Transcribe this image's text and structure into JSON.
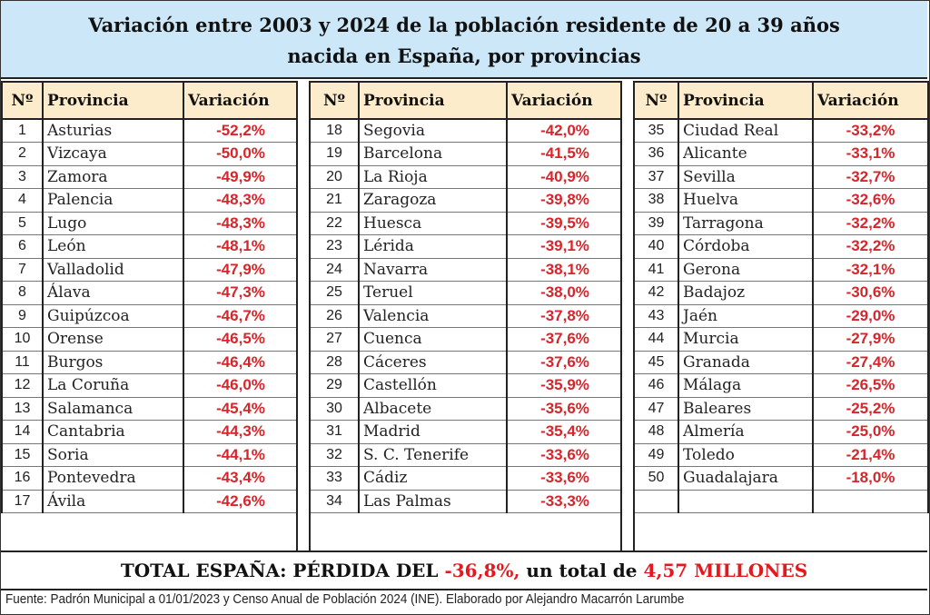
{
  "title": {
    "line1": "Variación entre 2003 y 2024 de la población residente de 20 a 39 años",
    "line2": "nacida en España, por provincias"
  },
  "headers": {
    "num": "Nº",
    "province": "Provincia",
    "variation": "Variación"
  },
  "chart_data": {
    "type": "table",
    "title": "Variación entre 2003 y 2024 de la población residente de 20 a 39 años nacida en España, por provincias",
    "columns": [
      "Nº",
      "Provincia",
      "Variación"
    ],
    "rows": [
      {
        "n": "1",
        "province": "Asturias",
        "variation": "-52,2%"
      },
      {
        "n": "2",
        "province": "Vizcaya",
        "variation": "-50,0%"
      },
      {
        "n": "3",
        "province": "Zamora",
        "variation": "-49,9%"
      },
      {
        "n": "4",
        "province": "Palencia",
        "variation": "-48,3%"
      },
      {
        "n": "5",
        "province": "Lugo",
        "variation": "-48,3%"
      },
      {
        "n": "6",
        "province": "León",
        "variation": "-48,1%"
      },
      {
        "n": "7",
        "province": "Valladolid",
        "variation": "-47,9%"
      },
      {
        "n": "8",
        "province": "Álava",
        "variation": "-47,3%"
      },
      {
        "n": "9",
        "province": "Guipúzcoa",
        "variation": "-46,7%"
      },
      {
        "n": "10",
        "province": "Orense",
        "variation": "-46,5%"
      },
      {
        "n": "11",
        "province": "Burgos",
        "variation": "-46,4%"
      },
      {
        "n": "12",
        "province": "La Coruña",
        "variation": "-46,0%"
      },
      {
        "n": "13",
        "province": "Salamanca",
        "variation": "-45,4%"
      },
      {
        "n": "14",
        "province": "Cantabria",
        "variation": "-44,3%"
      },
      {
        "n": "15",
        "province": "Soria",
        "variation": "-44,1%"
      },
      {
        "n": "16",
        "province": "Pontevedra",
        "variation": "-43,4%"
      },
      {
        "n": "17",
        "province": "Ávila",
        "variation": "-42,6%"
      },
      {
        "n": "18",
        "province": "Segovia",
        "variation": "-42,0%"
      },
      {
        "n": "19",
        "province": "Barcelona",
        "variation": "-41,5%"
      },
      {
        "n": "20",
        "province": "La Rioja",
        "variation": "-40,9%"
      },
      {
        "n": "21",
        "province": "Zaragoza",
        "variation": "-39,8%"
      },
      {
        "n": "22",
        "province": "Huesca",
        "variation": "-39,5%"
      },
      {
        "n": "23",
        "province": "Lérida",
        "variation": "-39,1%"
      },
      {
        "n": "24",
        "province": "Navarra",
        "variation": "-38,1%"
      },
      {
        "n": "25",
        "province": "Teruel",
        "variation": "-38,0%"
      },
      {
        "n": "26",
        "province": "Valencia",
        "variation": "-37,8%"
      },
      {
        "n": "27",
        "province": "Cuenca",
        "variation": "-37,6%"
      },
      {
        "n": "28",
        "province": "Cáceres",
        "variation": "-37,6%"
      },
      {
        "n": "29",
        "province": "Castellón",
        "variation": "-35,9%"
      },
      {
        "n": "30",
        "province": "Albacete",
        "variation": "-35,6%"
      },
      {
        "n": "31",
        "province": "Madrid",
        "variation": "-35,4%"
      },
      {
        "n": "32",
        "province": "S. C. Tenerife",
        "variation": "-33,6%"
      },
      {
        "n": "33",
        "province": "Cádiz",
        "variation": "-33,6%"
      },
      {
        "n": "34",
        "province": "Las Palmas",
        "variation": "-33,3%"
      },
      {
        "n": "35",
        "province": "Ciudad Real",
        "variation": "-33,2%"
      },
      {
        "n": "36",
        "province": "Alicante",
        "variation": "-33,1%"
      },
      {
        "n": "37",
        "province": "Sevilla",
        "variation": "-32,7%"
      },
      {
        "n": "38",
        "province": "Huelva",
        "variation": "-32,6%"
      },
      {
        "n": "39",
        "province": "Tarragona",
        "variation": "-32,2%"
      },
      {
        "n": "40",
        "province": "Córdoba",
        "variation": "-32,2%"
      },
      {
        "n": "41",
        "province": "Gerona",
        "variation": "-32,1%"
      },
      {
        "n": "42",
        "province": "Badajoz",
        "variation": "-30,6%"
      },
      {
        "n": "43",
        "province": "Jaén",
        "variation": "-29,0%"
      },
      {
        "n": "44",
        "province": "Murcia",
        "variation": "-27,9%"
      },
      {
        "n": "45",
        "province": "Granada",
        "variation": "-27,4%"
      },
      {
        "n": "46",
        "province": "Málaga",
        "variation": "-26,5%"
      },
      {
        "n": "47",
        "province": "Baleares",
        "variation": "-25,2%"
      },
      {
        "n": "48",
        "province": "Almería",
        "variation": "-25,0%"
      },
      {
        "n": "49",
        "province": "Toledo",
        "variation": "-21,4%"
      },
      {
        "n": "50",
        "province": "Guadalajara",
        "variation": "-18,0%"
      }
    ]
  },
  "total": {
    "prefix": "TOTAL ESPAÑA: PÉRDIDA DEL ",
    "percent": "-36,8%,",
    "middle": " un total de ",
    "amount": "4,57 MILLONES"
  },
  "source": "Fuente: Padrón Municipal a 01/01/2023 y Censo Anual de Población 2024 (INE). Elaborado por Alejandro Macarrón Larumbe",
  "colors": {
    "title_bg": "#cbe7f8",
    "header_bg": "#fdeccb",
    "value_red": "#d6262b"
  }
}
